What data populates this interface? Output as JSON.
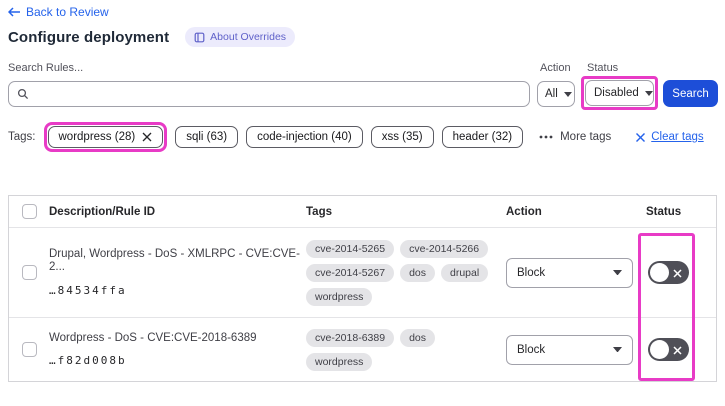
{
  "back_link": "Back to Review",
  "header": {
    "title": "Configure deployment",
    "badge": "About Overrides"
  },
  "filters": {
    "search_label": "Search Rules...",
    "action_label": "Action",
    "status_label": "Status",
    "action_value": "All",
    "status_value": "Disabled",
    "search_button": "Search"
  },
  "tags_bar": {
    "label": "Tags:",
    "selected_tag": "wordpress (28)",
    "tags": [
      "sqli (63)",
      "code-injection (40)",
      "xss (35)",
      "header (32)"
    ],
    "more_tags": "More tags",
    "clear_tags": "Clear tags"
  },
  "table": {
    "columns": [
      "Description/Rule ID",
      "Tags",
      "Action",
      "Status"
    ],
    "rows": [
      {
        "description": "Drupal, Wordpress - DoS - XMLRPC - CVE:CVE-2...",
        "rule_id": "…84534ffa",
        "tags": [
          "cve-2014-5265",
          "cve-2014-5266",
          "cve-2014-5267",
          "dos",
          "drupal",
          "wordpress"
        ],
        "action": "Block",
        "status": "disabled"
      },
      {
        "description": "Wordpress - DoS - CVE:CVE-2018-6389",
        "rule_id": "…f82d008b",
        "tags": [
          "cve-2018-6389",
          "dos",
          "wordpress"
        ],
        "action": "Block",
        "status": "disabled"
      }
    ]
  },
  "icons": {
    "back_arrow": "left-arrow",
    "search": "magnifier",
    "badge": "book",
    "caret": "caret-down",
    "remove": "x-mark",
    "ellipsis": "three-dots",
    "toggle_off": "x-mark"
  },
  "colors": {
    "link_blue": "#2563eb",
    "accent_blue": "#1d4ed8",
    "highlight_pink": "#e83bc6",
    "badge_bg": "#ecebfc",
    "badge_text": "#5f61c9",
    "toggle_off_bg": "#4f4f57",
    "tag_badge_bg": "#e4e4e7",
    "table_border": "#d4d4d8"
  }
}
